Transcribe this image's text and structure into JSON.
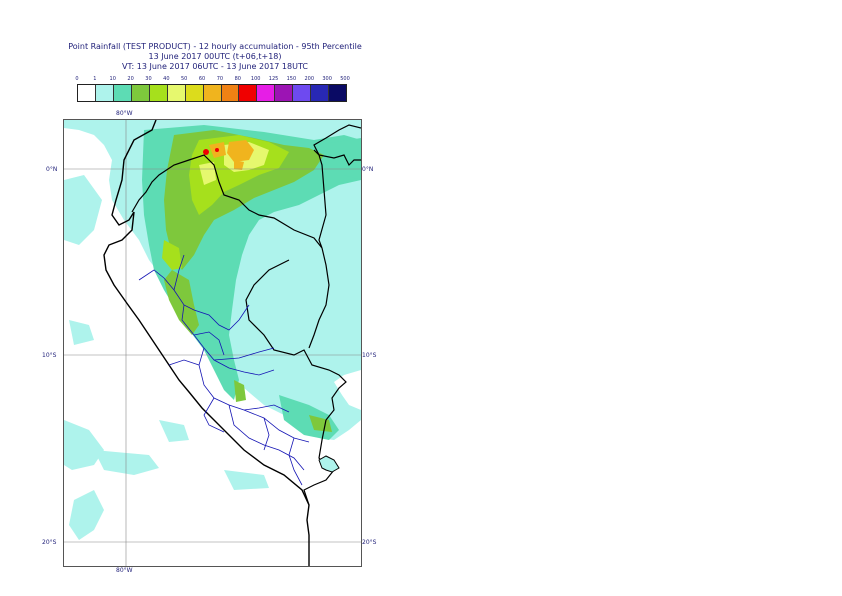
{
  "title": {
    "line1": "Point Rainfall (TEST PRODUCT) - 12 hourly accumulation - 95th Percentile",
    "line2": "13 June 2017 00UTC (t+06,t+18)",
    "line3": "VT: 13 June 2017 06UTC - 13 June 2017 18UTC"
  },
  "legend": {
    "ticks": [
      "0",
      "1",
      "10",
      "20",
      "30",
      "40",
      "50",
      "60",
      "70",
      "80",
      "100",
      "125",
      "150",
      "200",
      "300",
      "500"
    ],
    "colors": [
      "#ffffff",
      "#aef3ec",
      "#5ddcb4",
      "#7ec83c",
      "#a6e01c",
      "#e6f86e",
      "#dcdc1c",
      "#f0b41e",
      "#f08214",
      "#f00000",
      "#e61ee6",
      "#9c14b4",
      "#6e4af0",
      "#2828b4",
      "#0a0a64"
    ]
  },
  "map": {
    "lat_labels": {
      "eq": "0°N",
      "s10": "10°S",
      "s20": "20°S"
    },
    "lon_labels": {
      "top": "80°W",
      "bottom": "80°W"
    },
    "colors": {
      "light": "#aef3ec",
      "mid": "#5ddcb4",
      "green": "#7ec83c",
      "lime": "#a6e01c",
      "yellow": "#e6f86e",
      "orange": "#f0b41e",
      "red": "#f00000",
      "border": "#000000",
      "region": "#1414b4",
      "grid": "#888888"
    }
  }
}
